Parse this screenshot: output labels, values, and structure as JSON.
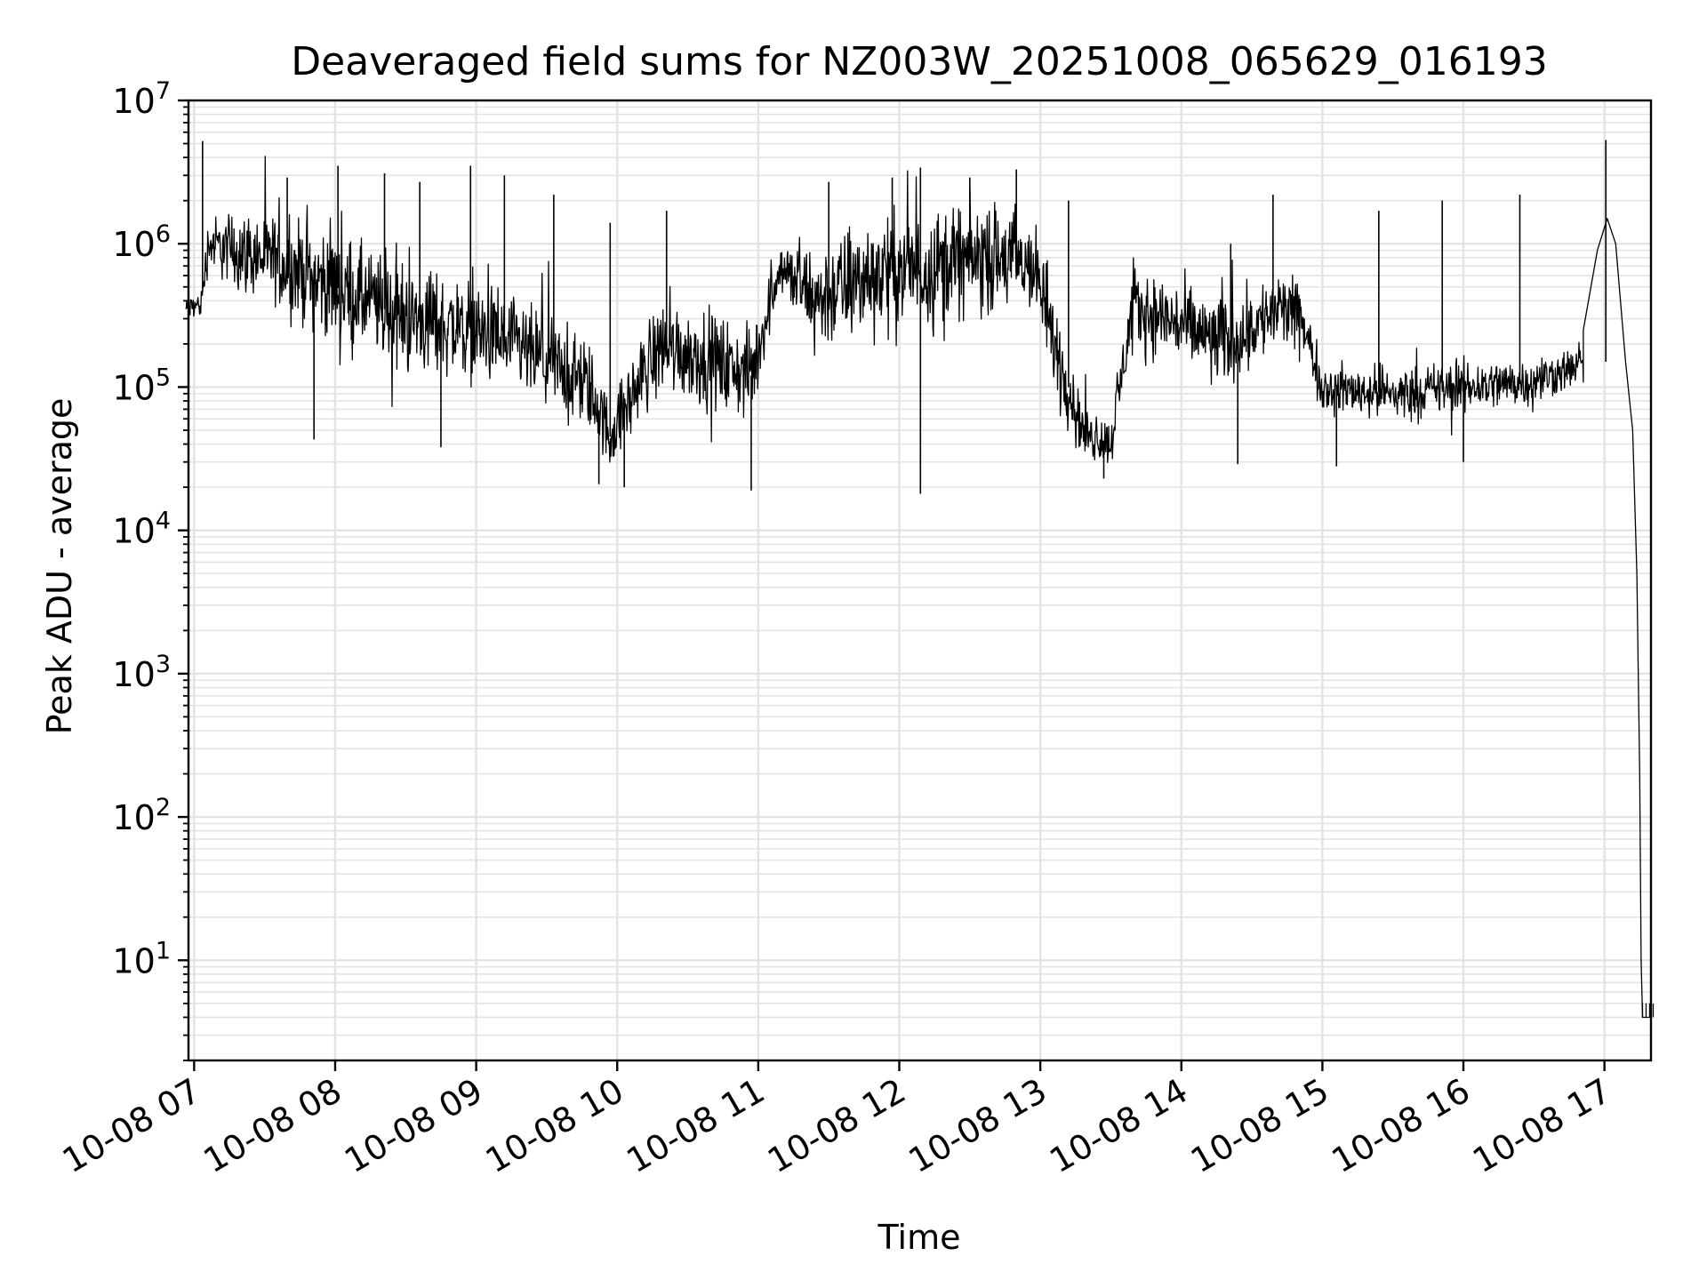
{
  "chart_data": {
    "type": "line",
    "title": "Deaveraged field sums for NZ003W_20251008_065629_016193",
    "xlabel": "Time",
    "ylabel": "Peak ADU - average",
    "yscale": "log",
    "ylim": [
      2,
      10000000
    ],
    "xlim_hours": [
      6.96,
      17.33
    ],
    "grid": true,
    "x_ticks": [
      {
        "hour": 7,
        "label": "10-08 07"
      },
      {
        "hour": 8,
        "label": "10-08 08"
      },
      {
        "hour": 9,
        "label": "10-08 09"
      },
      {
        "hour": 10,
        "label": "10-08 10"
      },
      {
        "hour": 11,
        "label": "10-08 11"
      },
      {
        "hour": 12,
        "label": "10-08 12"
      },
      {
        "hour": 13,
        "label": "10-08 13"
      },
      {
        "hour": 14,
        "label": "10-08 14"
      },
      {
        "hour": 15,
        "label": "10-08 15"
      },
      {
        "hour": 16,
        "label": "10-08 16"
      },
      {
        "hour": 17,
        "label": "10-08 17"
      }
    ],
    "y_ticks": [
      {
        "value": 10,
        "base": "10",
        "exp": "1"
      },
      {
        "value": 100,
        "base": "10",
        "exp": "2"
      },
      {
        "value": 1000,
        "base": "10",
        "exp": "3"
      },
      {
        "value": 10000,
        "base": "10",
        "exp": "4"
      },
      {
        "value": 100000,
        "base": "10",
        "exp": "5"
      },
      {
        "value": 1000000,
        "base": "10",
        "exp": "6"
      },
      {
        "value": 10000000,
        "base": "10",
        "exp": "7"
      }
    ],
    "series": [
      {
        "name": "field sums",
        "color": "#000000",
        "envelope": {
          "hours": [
            6.94,
            7.05,
            7.1,
            7.3,
            7.6,
            8.0,
            8.5,
            9.0,
            9.5,
            9.8,
            9.95,
            10.3,
            10.7,
            10.95,
            11.15,
            11.4,
            11.8,
            12.2,
            12.6,
            12.95,
            13.1,
            13.3,
            13.5,
            13.65,
            13.9,
            14.3,
            14.7,
            14.85,
            15.0,
            15.5,
            16.0,
            16.5,
            16.9
          ],
          "median": [
            350000,
            380000,
            1000000,
            900000,
            750000,
            500000,
            300000,
            250000,
            150000,
            100000,
            45000,
            200000,
            150000,
            120000,
            700000,
            400000,
            600000,
            700000,
            800000,
            700000,
            200000,
            50000,
            40000,
            350000,
            300000,
            200000,
            350000,
            300000,
            100000,
            90000,
            100000,
            110000,
            150000
          ],
          "spread": [
            1.2,
            1.3,
            1.6,
            2.0,
            2.2,
            2.6,
            2.6,
            2.4,
            2.3,
            2.2,
            1.8,
            2.3,
            2.3,
            2.2,
            1.5,
            2.6,
            2.8,
            2.8,
            2.6,
            2.4,
            2.2,
            1.6,
            1.5,
            2.0,
            2.1,
            2.2,
            2.0,
            1.8,
            1.5,
            1.6,
            1.6,
            1.5,
            1.4
          ]
        },
        "spikes": [
          {
            "hour": 7.06,
            "value": 5200000
          },
          {
            "hour": 7.66,
            "value": 2900000
          },
          {
            "hour": 8.02,
            "value": 3500000
          },
          {
            "hour": 8.35,
            "value": 3100000
          },
          {
            "hour": 8.6,
            "value": 2700000
          },
          {
            "hour": 8.96,
            "value": 3500000
          },
          {
            "hour": 9.2,
            "value": 3000000
          },
          {
            "hour": 9.55,
            "value": 2200000
          },
          {
            "hour": 9.95,
            "value": 1400000
          },
          {
            "hour": 10.35,
            "value": 1700000
          },
          {
            "hour": 11.5,
            "value": 2700000
          },
          {
            "hour": 11.95,
            "value": 2900000
          },
          {
            "hour": 12.15,
            "value": 3400000
          },
          {
            "hour": 12.5,
            "value": 2900000
          },
          {
            "hour": 12.83,
            "value": 3300000
          },
          {
            "hour": 13.2,
            "value": 2000000
          },
          {
            "hour": 14.35,
            "value": 1000000
          },
          {
            "hour": 14.65,
            "value": 2200000
          },
          {
            "hour": 15.4,
            "value": 1700000
          },
          {
            "hour": 15.85,
            "value": 2000000
          },
          {
            "hour": 16.4,
            "value": 2200000
          },
          {
            "hour": 17.01,
            "value": 5300000
          }
        ],
        "dips": [
          {
            "hour": 7.85,
            "value": 43000
          },
          {
            "hour": 8.75,
            "value": 38000
          },
          {
            "hour": 9.87,
            "value": 21000
          },
          {
            "hour": 10.05,
            "value": 20000
          },
          {
            "hour": 10.95,
            "value": 19000
          },
          {
            "hour": 12.15,
            "value": 18000
          },
          {
            "hour": 13.45,
            "value": 23000
          },
          {
            "hour": 14.4,
            "value": 29000
          },
          {
            "hour": 15.1,
            "value": 28000
          },
          {
            "hour": 16.0,
            "value": 30000
          }
        ],
        "tail": {
          "hours": [
            16.85,
            16.95,
            17.02,
            17.08,
            17.15,
            17.2,
            17.23,
            17.25,
            17.26,
            17.27,
            17.33
          ],
          "values": [
            250000,
            900000,
            1500000,
            1000000,
            150000,
            50000,
            5000,
            200,
            10,
            4,
            4
          ]
        }
      }
    ]
  }
}
